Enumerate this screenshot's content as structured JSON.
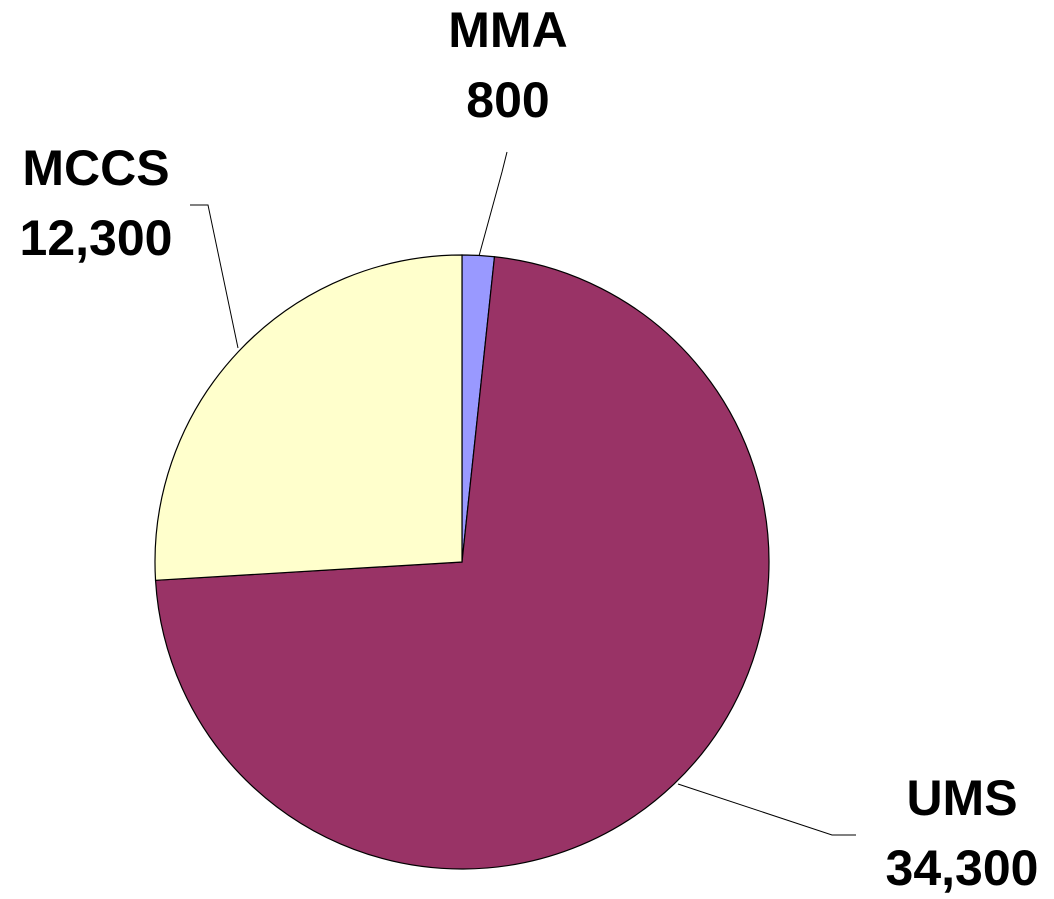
{
  "chart_data": {
    "type": "pie",
    "categories": [
      "MMA",
      "UMS",
      "MCCS"
    ],
    "values": [
      800,
      34300,
      12300
    ],
    "value_labels": [
      "800",
      "34,300",
      "12,300"
    ],
    "colors": [
      "#9999ff",
      "#993366",
      "#ffffcc"
    ]
  }
}
